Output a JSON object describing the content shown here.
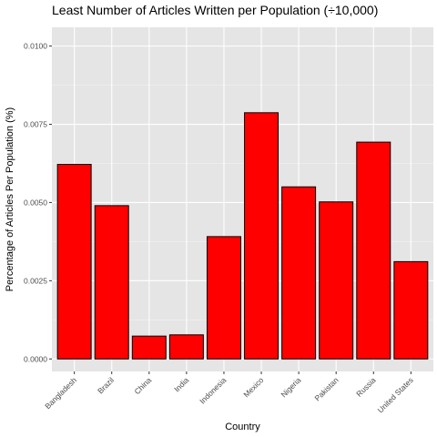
{
  "chart_data": {
    "type": "bar",
    "title": "Least Number of Articles Written per Population (÷10,000)",
    "xlabel": "Country",
    "ylabel": "Percentage of Articles Per Population (%)",
    "categories": [
      "Bangladesh",
      "Brazil",
      "China",
      "India",
      "Indonesia",
      "Mexico",
      "Nigeria",
      "Pakistan",
      "Russia",
      "United States"
    ],
    "values": [
      0.00622,
      0.0049,
      0.00073,
      0.00077,
      0.00391,
      0.00787,
      0.0055,
      0.00502,
      0.00693,
      0.00311
    ],
    "ylim": [
      -0.0004,
      0.0106
    ],
    "yticks": [
      0,
      0.0025,
      0.005,
      0.0075,
      0.01
    ],
    "ytick_labels": [
      "0.0000",
      "0.0025",
      "0.0050",
      "0.0075",
      "0.0100"
    ],
    "grid": true,
    "colors": {
      "bar_fill": "#ff0000",
      "bar_stroke": "#000000",
      "panel_bg": "#e5e5e5",
      "grid_major": "#ffffff",
      "grid_minor": "#f2f2f2"
    }
  }
}
